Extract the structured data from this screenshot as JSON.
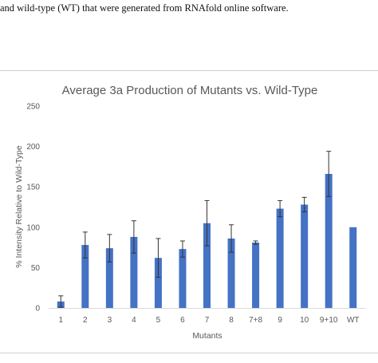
{
  "caption_fragment": "and wild-type (WT) that were generated from RNAfold online software.",
  "chart_data": {
    "type": "bar",
    "title": "Average 3a Production of Mutants vs. Wild-Type",
    "xlabel": "Mutants",
    "ylabel": "% Intensity Relative to Wild-Type",
    "ylim": [
      0,
      250
    ],
    "yticks": [
      0,
      50,
      100,
      150,
      200,
      250
    ],
    "grid": false,
    "legend": "none",
    "categories": [
      "1",
      "2",
      "3",
      "4",
      "5",
      "6",
      "7",
      "8",
      "7+8",
      "9",
      "10",
      "9+10",
      "WT"
    ],
    "values": [
      8,
      78,
      74,
      88,
      62,
      73,
      105,
      86,
      81,
      123,
      128,
      166,
      100
    ],
    "errors": [
      7,
      16,
      17,
      20,
      24,
      10,
      28,
      17,
      2,
      10,
      9,
      28,
      0
    ],
    "bar_color": "#4472C4",
    "axis_color": "#595959"
  }
}
